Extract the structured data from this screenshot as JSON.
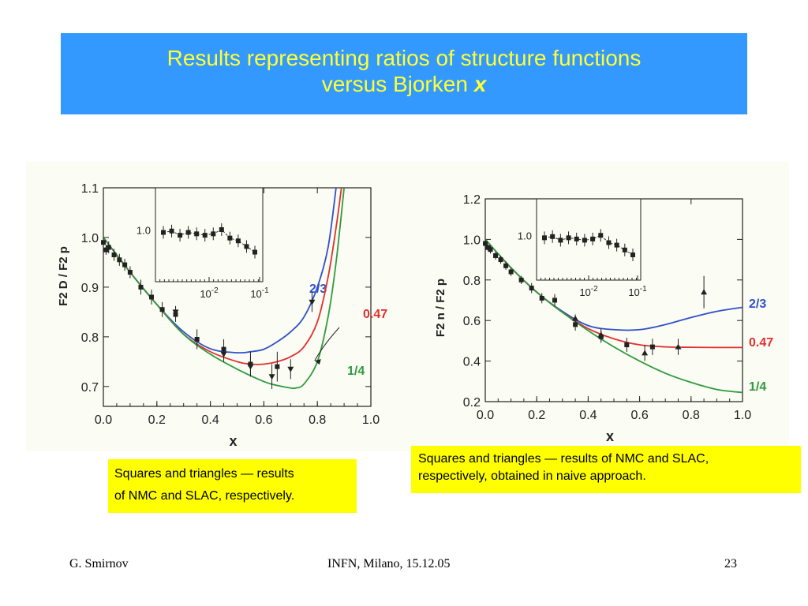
{
  "title": {
    "line1": "Results representing ratios of structure functions",
    "line2": "versus Bjorken ",
    "var": "x"
  },
  "notes": {
    "left_line1": "Squares and triangles — results",
    "left_line2": "of NMC and SLAC, respectively.",
    "right_line1": "Squares and triangles — results of NMC and SLAC,",
    "right_line2": "respectively, obtained in naive approach."
  },
  "footer": {
    "author": "G. Smirnov",
    "venue": "INFN, Milano, 15.12.05",
    "page": "23"
  },
  "colors": {
    "title_bg": "#3399ff",
    "title_text": "#ffff33",
    "note_bg": "#ffff00",
    "blue": "#3050c8",
    "red": "#e03030",
    "green": "#2f9a3f"
  },
  "chart_data": [
    {
      "type": "line",
      "ylabel": "F2 D / F2 p",
      "xlabel": "x",
      "xlim": [
        0.0,
        1.0
      ],
      "ylim": [
        0.66,
        1.1
      ],
      "xticks": [
        "0.0",
        "0.2",
        "0.4",
        "0.6",
        "0.8",
        "1.0"
      ],
      "yticks": [
        "0.7",
        "0.8",
        "0.9",
        "1.0",
        "1.1"
      ],
      "series": [
        {
          "name": "2/3",
          "color": "#3050c8",
          "x": [
            0.0,
            0.1,
            0.2,
            0.3,
            0.4,
            0.5,
            0.55,
            0.6,
            0.65,
            0.7,
            0.75,
            0.8,
            0.84,
            0.87
          ],
          "y": [
            1.0,
            0.93,
            0.865,
            0.81,
            0.776,
            0.768,
            0.77,
            0.775,
            0.79,
            0.81,
            0.84,
            0.9,
            0.98,
            1.1
          ]
        },
        {
          "name": "0.47",
          "color": "#e03030",
          "x": [
            0.0,
            0.1,
            0.2,
            0.3,
            0.4,
            0.5,
            0.55,
            0.6,
            0.65,
            0.7,
            0.75,
            0.8,
            0.84,
            0.87,
            0.89
          ],
          "y": [
            1.0,
            0.93,
            0.865,
            0.805,
            0.77,
            0.75,
            0.745,
            0.745,
            0.75,
            0.76,
            0.78,
            0.83,
            0.92,
            1.02,
            1.1
          ]
        },
        {
          "name": "1/4",
          "color": "#2f9a3f",
          "x": [
            0.0,
            0.1,
            0.2,
            0.3,
            0.4,
            0.5,
            0.6,
            0.65,
            0.7,
            0.72,
            0.75,
            0.8,
            0.84,
            0.87,
            0.9
          ],
          "y": [
            1.0,
            0.93,
            0.865,
            0.805,
            0.765,
            0.735,
            0.71,
            0.702,
            0.697,
            0.697,
            0.705,
            0.75,
            0.84,
            0.95,
            1.1
          ]
        }
      ],
      "nmc_squares": {
        "x": [
          0.0,
          0.01,
          0.02,
          0.04,
          0.06,
          0.08,
          0.1,
          0.14,
          0.18,
          0.22,
          0.27,
          0.35,
          0.45,
          0.55,
          0.65
        ],
        "y": [
          0.99,
          0.975,
          0.98,
          0.965,
          0.955,
          0.945,
          0.93,
          0.9,
          0.88,
          0.855,
          0.845,
          0.795,
          0.775,
          0.745,
          0.74
        ],
        "err": [
          0.015,
          0.01,
          0.012,
          0.012,
          0.012,
          0.012,
          0.012,
          0.015,
          0.015,
          0.015,
          0.015,
          0.02,
          0.02,
          0.025,
          0.03
        ]
      },
      "slac_triangles": {
        "x": [
          0.27,
          0.45,
          0.55,
          0.63,
          0.7,
          0.78
        ],
        "y": [
          0.85,
          0.765,
          0.74,
          0.72,
          0.735,
          0.87
        ],
        "err": [
          0.012,
          0.015,
          0.02,
          0.025,
          0.02,
          0.02
        ]
      },
      "annotation": "0.47",
      "inset": {
        "xticks": [
          "10-2",
          "10-1"
        ],
        "ytick": "1.0"
      }
    },
    {
      "type": "line",
      "ylabel": "F2 n / F2 p",
      "xlabel": "x",
      "xlim": [
        0.0,
        1.0
      ],
      "ylim": [
        0.2,
        1.2
      ],
      "xticks": [
        "0.0",
        "0.2",
        "0.4",
        "0.6",
        "0.8",
        "1.0"
      ],
      "yticks": [
        "0.2",
        "0.4",
        "0.6",
        "0.8",
        "1.0",
        "1.2"
      ],
      "series": [
        {
          "name": "2/3",
          "color": "#3050c8",
          "x": [
            0.0,
            0.1,
            0.2,
            0.3,
            0.4,
            0.5,
            0.6,
            0.7,
            0.8,
            0.9,
            1.0
          ],
          "y": [
            1.0,
            0.86,
            0.74,
            0.645,
            0.575,
            0.555,
            0.555,
            0.58,
            0.615,
            0.645,
            0.665
          ]
        },
        {
          "name": "0.47",
          "color": "#e03030",
          "x": [
            0.0,
            0.1,
            0.2,
            0.3,
            0.4,
            0.5,
            0.6,
            0.7,
            0.8,
            0.9,
            1.0
          ],
          "y": [
            1.0,
            0.86,
            0.74,
            0.64,
            0.56,
            0.51,
            0.48,
            0.47,
            0.468,
            0.467,
            0.467
          ]
        },
        {
          "name": "1/4",
          "color": "#2f9a3f",
          "x": [
            0.0,
            0.1,
            0.2,
            0.3,
            0.4,
            0.5,
            0.6,
            0.7,
            0.8,
            0.9,
            1.0
          ],
          "y": [
            1.0,
            0.86,
            0.74,
            0.64,
            0.55,
            0.47,
            0.4,
            0.34,
            0.295,
            0.26,
            0.245
          ]
        }
      ],
      "nmc_squares": {
        "x": [
          0.0,
          0.01,
          0.02,
          0.04,
          0.06,
          0.08,
          0.1,
          0.14,
          0.18,
          0.22,
          0.27,
          0.35,
          0.45,
          0.55,
          0.65
        ],
        "y": [
          0.98,
          0.96,
          0.95,
          0.92,
          0.9,
          0.87,
          0.84,
          0.8,
          0.76,
          0.71,
          0.7,
          0.58,
          0.52,
          0.48,
          0.47
        ],
        "err": [
          0.02,
          0.015,
          0.02,
          0.02,
          0.02,
          0.02,
          0.02,
          0.02,
          0.025,
          0.025,
          0.03,
          0.03,
          0.03,
          0.035,
          0.04
        ]
      },
      "slac_triangles": {
        "x": [
          0.35,
          0.45,
          0.62,
          0.75,
          0.85
        ],
        "y": [
          0.61,
          0.53,
          0.44,
          0.47,
          0.74
        ],
        "err": [
          0.02,
          0.03,
          0.04,
          0.04,
          0.08
        ]
      },
      "inset": {
        "xticks": [
          "10-2",
          "10-1"
        ],
        "ytick": "1.0"
      }
    }
  ]
}
